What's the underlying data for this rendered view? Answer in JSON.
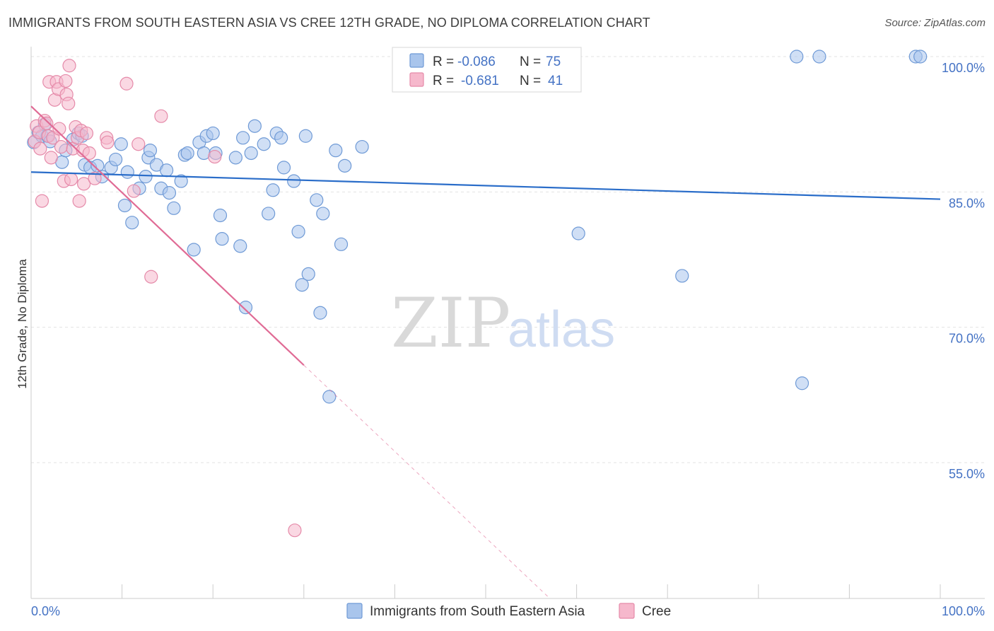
{
  "header": {
    "title": "IMMIGRANTS FROM SOUTH EASTERN ASIA VS CREE 12TH GRADE, NO DIPLOMA CORRELATION CHART",
    "source": "Source: ZipAtlas.com"
  },
  "watermark": {
    "zip": "ZIP",
    "atlas": "atlas"
  },
  "colors": {
    "blue_fill": "#a9c5ec",
    "blue_stroke": "#6f9ad6",
    "blue_line": "#2a6dc9",
    "pink_fill": "#f6b8cc",
    "pink_stroke": "#e58aa9",
    "pink_line": "#e06b95",
    "tick_text": "#4472c4",
    "grid": "#e3e3e3"
  },
  "legend": {
    "rows": [
      {
        "r_label": "R =",
        "r_value": "-0.086",
        "n_label": "N =",
        "n_value": "75"
      },
      {
        "r_label": "R =",
        "r_value": "-0.681",
        "n_label": "N =",
        "n_value": "41"
      }
    ]
  },
  "chart_data": {
    "type": "scatter",
    "title": "IMMIGRANTS FROM SOUTH EASTERN ASIA VS CREE 12TH GRADE, NO DIPLOMA CORRELATION CHART",
    "xlabel": "",
    "ylabel": "12th Grade, No Diploma",
    "xlim": [
      0,
      100
    ],
    "ylim": [
      40,
      102
    ],
    "x_tick_labels": [
      "0.0%",
      "100.0%"
    ],
    "y_ticks": [
      55,
      70,
      85,
      100
    ],
    "y_tick_labels": [
      "55.0%",
      "70.0%",
      "85.0%",
      "100.0%"
    ],
    "grid": true,
    "legend_placement": "top-center",
    "series": [
      {
        "name": "Immigrants from South Eastern Asia",
        "color": "#a9c5ec",
        "r": -0.086,
        "n": 75,
        "trend": {
          "x": [
            0,
            100
          ],
          "y": [
            87.2,
            84.2
          ]
        },
        "points": [
          [
            0.3,
            90.5
          ],
          [
            0.8,
            91.6
          ],
          [
            1.2,
            91.2
          ],
          [
            1.5,
            92.5
          ],
          [
            1.8,
            91.2
          ],
          [
            2.1,
            90.6
          ],
          [
            3.4,
            88.3
          ],
          [
            3.8,
            89.6
          ],
          [
            4.6,
            90.8
          ],
          [
            5.2,
            91.5
          ],
          [
            5.6,
            91.2
          ],
          [
            5.9,
            88.0
          ],
          [
            6.5,
            87.7
          ],
          [
            7.3,
            87.9
          ],
          [
            7.8,
            86.7
          ],
          [
            8.8,
            87.7
          ],
          [
            9.3,
            88.6
          ],
          [
            9.9,
            90.3
          ],
          [
            10.3,
            83.5
          ],
          [
            10.6,
            87.2
          ],
          [
            11.1,
            81.6
          ],
          [
            11.9,
            85.4
          ],
          [
            12.6,
            86.7
          ],
          [
            12.9,
            88.8
          ],
          [
            13.1,
            89.6
          ],
          [
            13.8,
            88.0
          ],
          [
            14.3,
            85.4
          ],
          [
            14.9,
            87.4
          ],
          [
            15.2,
            84.9
          ],
          [
            15.7,
            83.2
          ],
          [
            16.5,
            86.2
          ],
          [
            16.9,
            89.1
          ],
          [
            17.2,
            89.3
          ],
          [
            17.9,
            78.6
          ],
          [
            18.5,
            90.5
          ],
          [
            19.0,
            89.3
          ],
          [
            19.3,
            91.2
          ],
          [
            20.0,
            91.5
          ],
          [
            20.3,
            89.3
          ],
          [
            20.8,
            82.4
          ],
          [
            21.0,
            79.8
          ],
          [
            22.5,
            88.8
          ],
          [
            23.0,
            79.0
          ],
          [
            23.3,
            91.0
          ],
          [
            23.6,
            72.2
          ],
          [
            24.2,
            89.3
          ],
          [
            24.6,
            92.3
          ],
          [
            25.6,
            90.3
          ],
          [
            26.1,
            82.6
          ],
          [
            26.6,
            85.2
          ],
          [
            27.0,
            91.5
          ],
          [
            27.5,
            91.0
          ],
          [
            27.8,
            87.7
          ],
          [
            28.9,
            86.2
          ],
          [
            29.4,
            80.6
          ],
          [
            29.8,
            74.7
          ],
          [
            30.2,
            91.2
          ],
          [
            30.5,
            75.9
          ],
          [
            31.4,
            84.1
          ],
          [
            31.8,
            71.6
          ],
          [
            32.1,
            82.6
          ],
          [
            32.8,
            62.3
          ],
          [
            33.5,
            89.6
          ],
          [
            34.1,
            79.2
          ],
          [
            34.5,
            87.9
          ],
          [
            36.4,
            90.0
          ],
          [
            42.9,
            100.0
          ],
          [
            50.0,
            98.1
          ],
          [
            60.2,
            80.4
          ],
          [
            71.6,
            75.7
          ],
          [
            84.2,
            100.0
          ],
          [
            84.8,
            63.8
          ],
          [
            86.7,
            100.0
          ],
          [
            97.3,
            100.0
          ],
          [
            97.8,
            100.0
          ]
        ]
      },
      {
        "name": "Cree",
        "color": "#f6b8cc",
        "r": -0.681,
        "n": 41,
        "trend": {
          "x": [
            0,
            30
          ],
          "y": [
            94.5,
            65.8
          ]
        },
        "trend_dashed": {
          "x": [
            30,
            57
          ],
          "y": [
            65.8,
            40.0
          ]
        },
        "points": [
          [
            0.4,
            90.6
          ],
          [
            0.6,
            92.3
          ],
          [
            0.9,
            91.6
          ],
          [
            1.0,
            89.8
          ],
          [
            1.2,
            84.0
          ],
          [
            1.5,
            92.9
          ],
          [
            1.7,
            92.6
          ],
          [
            1.9,
            91.2
          ],
          [
            2.0,
            97.2
          ],
          [
            2.2,
            88.8
          ],
          [
            2.4,
            91.0
          ],
          [
            2.6,
            95.2
          ],
          [
            2.8,
            97.2
          ],
          [
            3.0,
            96.4
          ],
          [
            3.1,
            92.0
          ],
          [
            3.3,
            90.0
          ],
          [
            3.6,
            86.2
          ],
          [
            3.8,
            97.3
          ],
          [
            3.9,
            95.8
          ],
          [
            4.1,
            94.8
          ],
          [
            4.2,
            99.0
          ],
          [
            4.4,
            86.4
          ],
          [
            4.6,
            89.8
          ],
          [
            4.9,
            92.2
          ],
          [
            5.1,
            91.0
          ],
          [
            5.3,
            84.0
          ],
          [
            5.5,
            91.8
          ],
          [
            5.7,
            89.6
          ],
          [
            5.8,
            85.9
          ],
          [
            6.1,
            91.5
          ],
          [
            6.4,
            89.3
          ],
          [
            7.0,
            86.5
          ],
          [
            8.3,
            91.0
          ],
          [
            8.4,
            90.5
          ],
          [
            10.5,
            97.0
          ],
          [
            11.3,
            85.1
          ],
          [
            11.8,
            90.3
          ],
          [
            13.2,
            75.6
          ],
          [
            14.3,
            93.4
          ],
          [
            20.2,
            88.9
          ],
          [
            29.0,
            47.5
          ]
        ]
      }
    ]
  },
  "bottom_legend": {
    "items": [
      {
        "label": "Immigrants from South Eastern Asia"
      },
      {
        "label": "Cree"
      }
    ]
  }
}
